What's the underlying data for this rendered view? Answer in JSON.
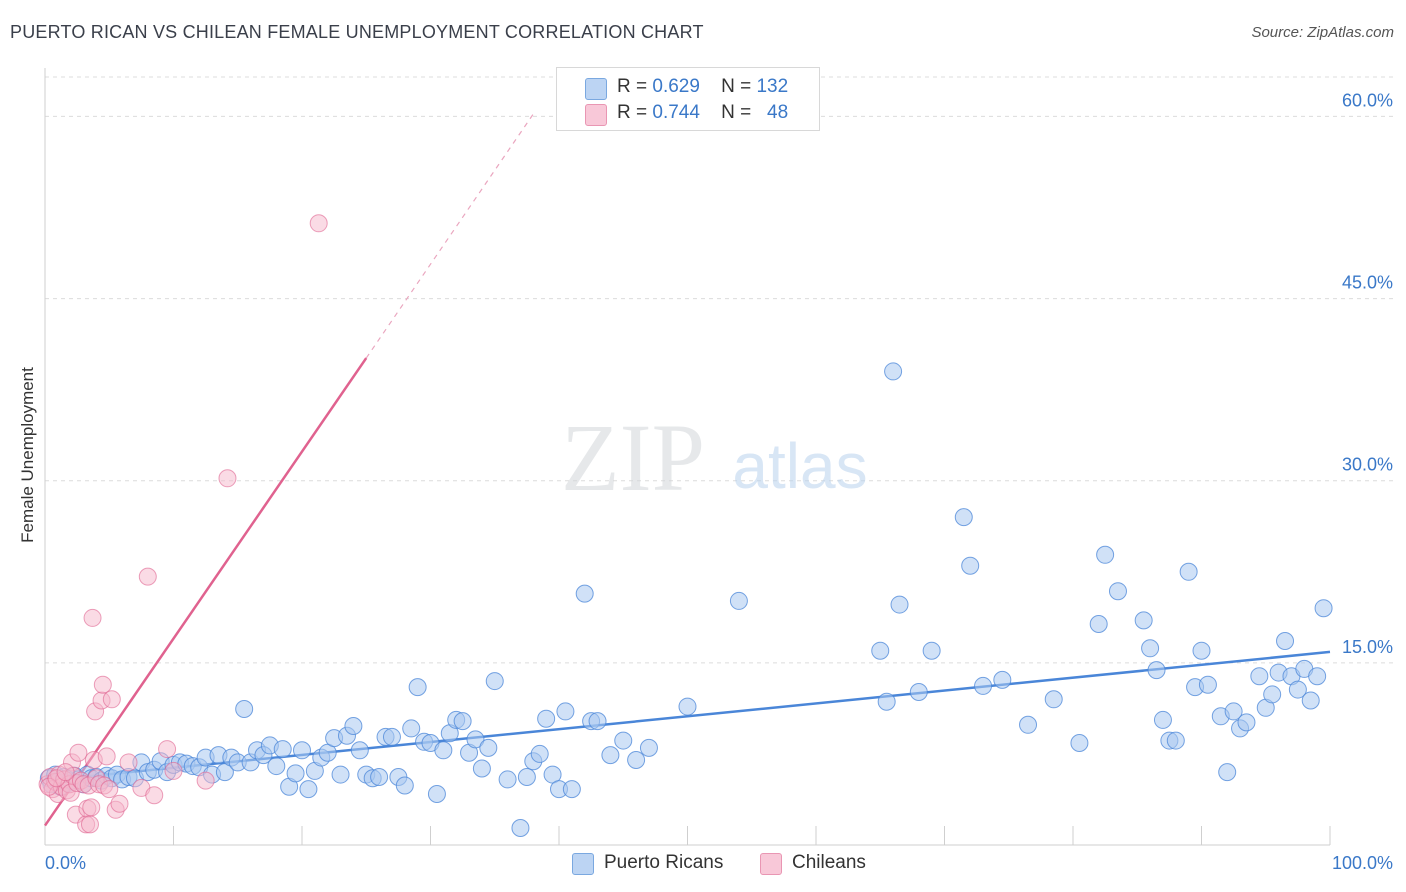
{
  "header": {
    "title": "PUERTO RICAN VS CHILEAN FEMALE UNEMPLOYMENT CORRELATION CHART",
    "source": "Source: ZipAtlas.com"
  },
  "watermark": {
    "zip": "ZIP",
    "atlas": "atlas"
  },
  "legend": {
    "rows": [
      {
        "r_label": "R =",
        "r_value": "0.629",
        "n_label": "N =",
        "n_value": "132",
        "color": "#a9c8f0"
      },
      {
        "r_label": "R =",
        "r_value": "0.744",
        "n_label": "N =",
        "n_value": "48",
        "color": "#f5b8cc"
      }
    ]
  },
  "bottom_legend": {
    "items": [
      {
        "label": "Puerto Ricans",
        "color": "#a9c8f0"
      },
      {
        "label": "Chileans",
        "color": "#f5b8cc"
      }
    ]
  },
  "chart_data": {
    "type": "scatter",
    "title": "PUERTO RICAN VS CHILEAN FEMALE UNEMPLOYMENT CORRELATION CHART",
    "xlabel": "",
    "ylabel": "Female Unemployment",
    "xlim": [
      0,
      100
    ],
    "ylim": [
      0,
      63
    ],
    "x_tick_labels": [
      "0.0%",
      "100.0%"
    ],
    "y_ticks": [
      15,
      30,
      45,
      60
    ],
    "y_tick_labels": [
      "15.0%",
      "30.0%",
      "45.0%",
      "60.0%"
    ],
    "grid": true,
    "colors": {
      "blue": "#4a86d8",
      "blue_fill": "#a9c8f0",
      "pink": "#e0628f",
      "pink_fill": "#f5b8cc",
      "tick_text": "#3a78c8"
    },
    "series": [
      {
        "name": "Puerto Ricans",
        "r": 0.629,
        "n": 132,
        "trend": {
          "x": [
            0,
            100
          ],
          "y": [
            5.3,
            15.9
          ]
        },
        "points": [
          [
            0.3,
            5.5
          ],
          [
            0.5,
            5.0
          ],
          [
            0.8,
            5.8
          ],
          [
            1.0,
            5.2
          ],
          [
            1.2,
            4.8
          ],
          [
            1.5,
            5.6
          ],
          [
            1.8,
            5.1
          ],
          [
            2.0,
            5.3
          ],
          [
            2.3,
            5.7
          ],
          [
            2.6,
            5.4
          ],
          [
            3.0,
            5.0
          ],
          [
            3.3,
            5.8
          ],
          [
            3.6,
            5.5
          ],
          [
            4.0,
            5.6
          ],
          [
            4.4,
            5.3
          ],
          [
            4.8,
            5.7
          ],
          [
            5.2,
            5.5
          ],
          [
            5.6,
            5.8
          ],
          [
            6.0,
            5.4
          ],
          [
            6.5,
            5.6
          ],
          [
            7.0,
            5.5
          ],
          [
            7.5,
            6.8
          ],
          [
            8.0,
            6.0
          ],
          [
            8.5,
            6.2
          ],
          [
            9.0,
            6.9
          ],
          [
            9.5,
            6.0
          ],
          [
            10.0,
            6.6
          ],
          [
            10.5,
            6.8
          ],
          [
            11.0,
            6.7
          ],
          [
            11.5,
            6.5
          ],
          [
            12.0,
            6.4
          ],
          [
            12.5,
            7.2
          ],
          [
            13.0,
            5.8
          ],
          [
            13.5,
            7.4
          ],
          [
            14.0,
            6.0
          ],
          [
            14.5,
            7.2
          ],
          [
            15.0,
            6.8
          ],
          [
            15.5,
            11.2
          ],
          [
            16.0,
            6.8
          ],
          [
            16.5,
            7.8
          ],
          [
            17.0,
            7.4
          ],
          [
            17.5,
            8.2
          ],
          [
            18.0,
            6.5
          ],
          [
            18.5,
            7.9
          ],
          [
            19.0,
            4.8
          ],
          [
            19.5,
            5.9
          ],
          [
            20.0,
            7.8
          ],
          [
            20.5,
            4.6
          ],
          [
            21.0,
            6.1
          ],
          [
            21.5,
            7.2
          ],
          [
            22.0,
            7.6
          ],
          [
            22.5,
            8.8
          ],
          [
            23.0,
            5.8
          ],
          [
            23.5,
            9.0
          ],
          [
            24.0,
            9.8
          ],
          [
            24.5,
            7.8
          ],
          [
            25.0,
            5.8
          ],
          [
            25.5,
            5.5
          ],
          [
            26.0,
            5.6
          ],
          [
            26.5,
            8.9
          ],
          [
            27.0,
            8.9
          ],
          [
            27.5,
            5.6
          ],
          [
            28.0,
            4.9
          ],
          [
            28.5,
            9.6
          ],
          [
            29.0,
            13.0
          ],
          [
            29.5,
            8.5
          ],
          [
            30.0,
            8.4
          ],
          [
            30.5,
            4.2
          ],
          [
            31.0,
            7.8
          ],
          [
            31.5,
            9.2
          ],
          [
            32.0,
            10.3
          ],
          [
            32.5,
            10.2
          ],
          [
            33.0,
            7.6
          ],
          [
            33.5,
            8.7
          ],
          [
            34.0,
            6.3
          ],
          [
            34.5,
            8.0
          ],
          [
            35.0,
            13.5
          ],
          [
            36.0,
            5.4
          ],
          [
            37.0,
            1.4
          ],
          [
            37.5,
            5.6
          ],
          [
            38.0,
            6.9
          ],
          [
            38.5,
            7.5
          ],
          [
            39.0,
            10.4
          ],
          [
            39.5,
            5.8
          ],
          [
            40.0,
            4.6
          ],
          [
            40.5,
            11.0
          ],
          [
            41.0,
            4.6
          ],
          [
            42.0,
            20.7
          ],
          [
            42.5,
            10.2
          ],
          [
            43.0,
            10.2
          ],
          [
            44.0,
            7.4
          ],
          [
            45.0,
            8.6
          ],
          [
            46.0,
            7.0
          ],
          [
            47.0,
            8.0
          ],
          [
            50.0,
            11.4
          ],
          [
            54.0,
            20.1
          ],
          [
            65.0,
            16.0
          ],
          [
            65.5,
            11.8
          ],
          [
            66.0,
            39.0
          ],
          [
            66.5,
            19.8
          ],
          [
            68.0,
            12.6
          ],
          [
            69.0,
            16.0
          ],
          [
            71.5,
            27.0
          ],
          [
            72.0,
            23.0
          ],
          [
            73.0,
            13.1
          ],
          [
            74.5,
            13.6
          ],
          [
            76.5,
            9.9
          ],
          [
            78.5,
            12.0
          ],
          [
            80.5,
            8.4
          ],
          [
            82.0,
            18.2
          ],
          [
            82.5,
            23.9
          ],
          [
            83.5,
            20.9
          ],
          [
            85.5,
            18.5
          ],
          [
            86.0,
            16.2
          ],
          [
            86.5,
            14.4
          ],
          [
            87.0,
            10.3
          ],
          [
            87.5,
            8.6
          ],
          [
            88.0,
            8.6
          ],
          [
            89.0,
            22.5
          ],
          [
            89.5,
            13.0
          ],
          [
            90.0,
            16.0
          ],
          [
            90.5,
            13.2
          ],
          [
            91.5,
            10.6
          ],
          [
            92.0,
            6.0
          ],
          [
            92.5,
            11.0
          ],
          [
            93.0,
            9.6
          ],
          [
            93.5,
            10.1
          ],
          [
            94.5,
            13.9
          ],
          [
            95.0,
            11.3
          ],
          [
            95.5,
            12.4
          ],
          [
            96.0,
            14.2
          ],
          [
            96.5,
            16.8
          ],
          [
            97.0,
            13.9
          ],
          [
            97.5,
            12.8
          ],
          [
            98.0,
            14.5
          ],
          [
            98.5,
            11.9
          ],
          [
            99.0,
            13.9
          ],
          [
            99.5,
            19.5
          ]
        ]
      },
      {
        "name": "Chileans",
        "r": 0.744,
        "n": 48,
        "trend": {
          "x": [
            0,
            25
          ],
          "y": [
            1.6,
            40.1
          ]
        },
        "trend_ext": {
          "x": [
            25,
            38
          ],
          "y": [
            40.1,
            60.2
          ]
        },
        "points": [
          [
            0.2,
            5.0
          ],
          [
            0.4,
            5.6
          ],
          [
            0.6,
            4.6
          ],
          [
            0.8,
            5.2
          ],
          [
            1.0,
            4.2
          ],
          [
            1.1,
            5.8
          ],
          [
            1.3,
            4.8
          ],
          [
            1.5,
            5.4
          ],
          [
            1.7,
            4.5
          ],
          [
            1.9,
            5.0
          ],
          [
            2.0,
            4.3
          ],
          [
            2.1,
            6.8
          ],
          [
            2.2,
            5.7
          ],
          [
            2.4,
            2.5
          ],
          [
            2.5,
            5.1
          ],
          [
            2.6,
            7.6
          ],
          [
            2.8,
            5.3
          ],
          [
            3.0,
            5.0
          ],
          [
            3.2,
            1.7
          ],
          [
            3.3,
            3.0
          ],
          [
            3.4,
            4.9
          ],
          [
            3.5,
            1.7
          ],
          [
            3.6,
            3.1
          ],
          [
            3.7,
            18.7
          ],
          [
            3.8,
            7.0
          ],
          [
            3.9,
            11.0
          ],
          [
            4.0,
            5.5
          ],
          [
            4.2,
            5.0
          ],
          [
            4.4,
            11.9
          ],
          [
            4.5,
            13.2
          ],
          [
            4.6,
            4.9
          ],
          [
            4.8,
            7.3
          ],
          [
            5.0,
            4.6
          ],
          [
            5.2,
            12.0
          ],
          [
            5.5,
            2.9
          ],
          [
            5.8,
            3.4
          ],
          [
            6.5,
            6.8
          ],
          [
            7.5,
            4.7
          ],
          [
            8.0,
            22.1
          ],
          [
            8.5,
            4.1
          ],
          [
            9.5,
            7.9
          ],
          [
            10.0,
            6.1
          ],
          [
            12.5,
            5.3
          ],
          [
            14.2,
            30.2
          ],
          [
            21.3,
            51.2
          ],
          [
            0.3,
            4.8
          ],
          [
            0.9,
            5.5
          ],
          [
            1.6,
            6.0
          ]
        ]
      }
    ]
  }
}
